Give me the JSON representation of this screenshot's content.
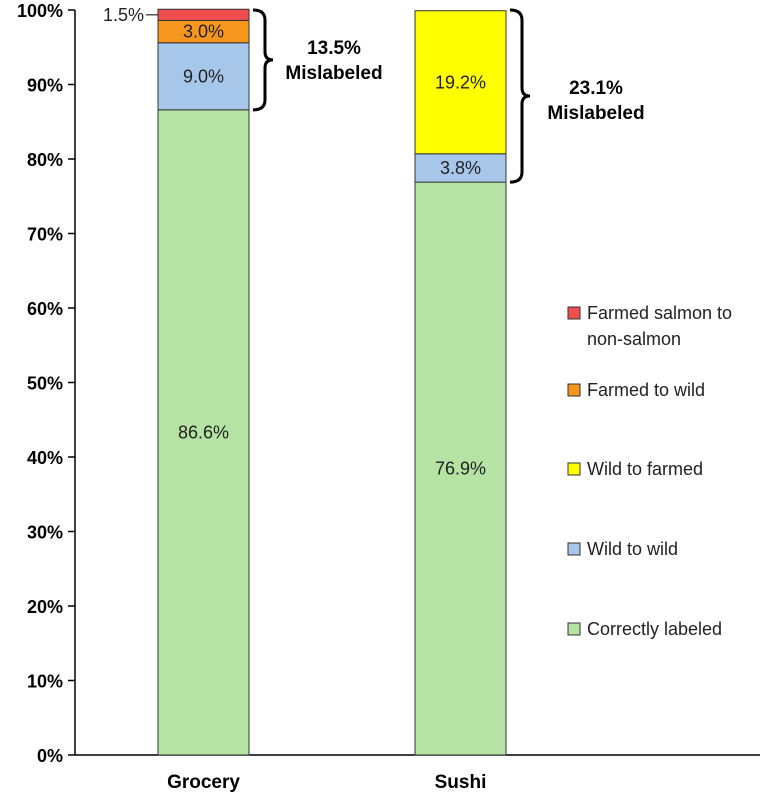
{
  "chart_data": {
    "type": "stacked-bar",
    "categories": [
      "Grocery",
      "Sushi"
    ],
    "ylim": [
      0,
      100
    ],
    "yticks": [
      "0%",
      "10%",
      "20%",
      "30%",
      "40%",
      "50%",
      "60%",
      "70%",
      "80%",
      "90%",
      "100%"
    ],
    "grid": false,
    "legend_position": "right",
    "series": [
      {
        "name": "Correctly labeled",
        "color": "#b5e3a3",
        "values": [
          86.6,
          76.9
        ],
        "labels": [
          "86.6%",
          "76.9%"
        ]
      },
      {
        "name": "Wild to wild",
        "color": "#a7c7ea",
        "values": [
          9.0,
          3.8
        ],
        "labels": [
          "9.0%",
          "3.8%"
        ]
      },
      {
        "name": "Wild to farmed",
        "color": "#ffff00",
        "values": [
          0,
          19.2
        ],
        "labels": [
          "",
          "19.2%"
        ]
      },
      {
        "name": "Farmed to wild",
        "color": "#f7961d",
        "values": [
          3.0,
          0
        ],
        "labels": [
          "3.0%",
          ""
        ]
      },
      {
        "name": "Farmed salmon to non-salmon",
        "color": "#f04e4e",
        "values": [
          1.5,
          0
        ],
        "labels": [
          "1.5%",
          ""
        ]
      }
    ],
    "legend_lines": [
      [
        "Farmed salmon to",
        "non-salmon"
      ],
      [
        "Farmed to wild"
      ],
      [
        "Wild to farmed"
      ],
      [
        "Wild to wild"
      ],
      [
        "Correctly labeled"
      ]
    ],
    "annotations": [
      {
        "category": "Grocery",
        "value": "13.5%",
        "text": "Mislabeled"
      },
      {
        "category": "Sushi",
        "value": "23.1%",
        "text": "Mislabeled"
      }
    ]
  }
}
